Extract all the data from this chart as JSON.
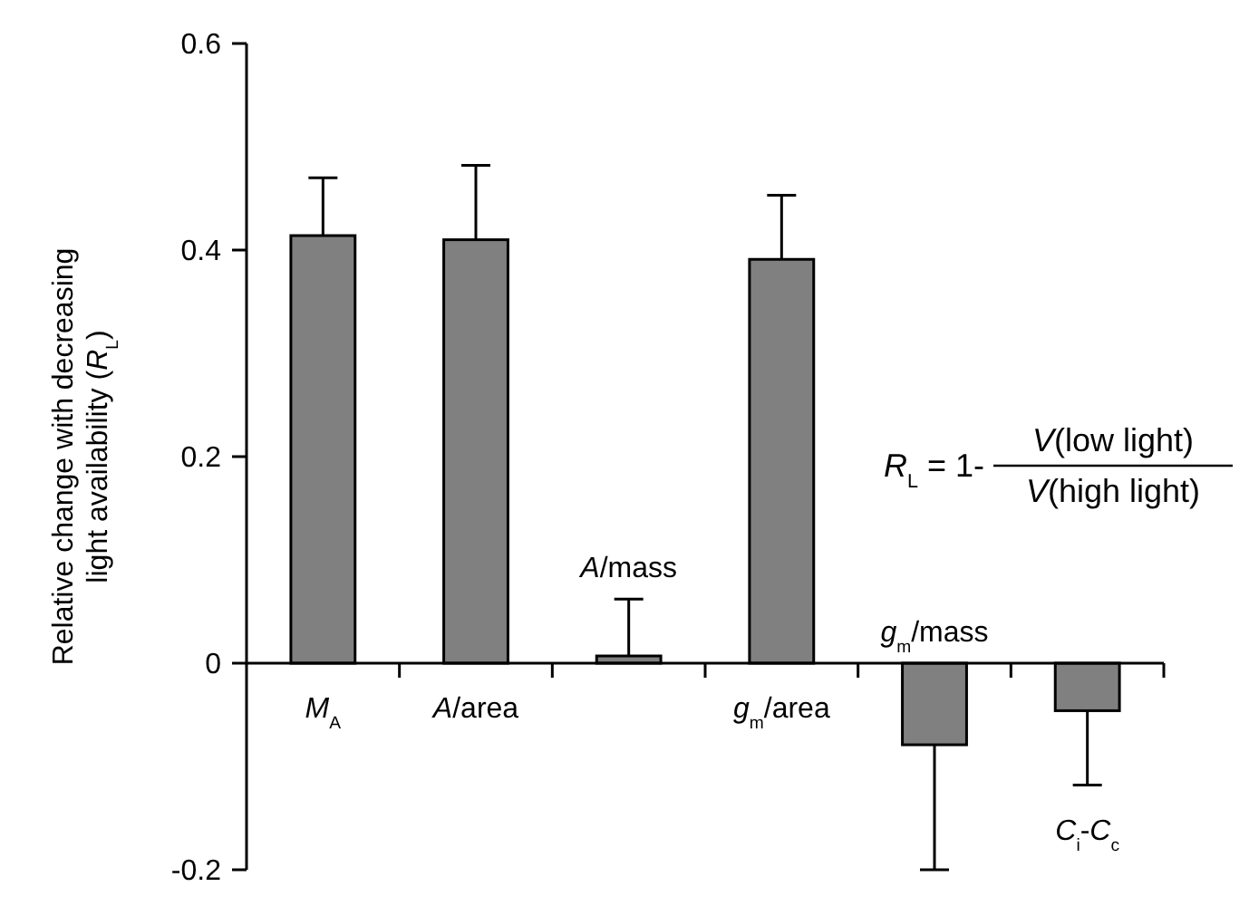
{
  "chart_data": {
    "type": "bar",
    "ylabel": "Relative change with decreasing\nlight availability (R$_{L}$)",
    "categories": [
      "M$_{A}$",
      "A/area",
      "A/mass",
      "g$_{m}$/area",
      "g$_{m}$/mass",
      "C$_{i}$-C$_{c}$"
    ],
    "values": [
      0.414,
      0.41,
      0.007,
      0.391,
      -0.079,
      -0.046
    ],
    "errors": [
      [
        0.414,
        0.47
      ],
      [
        0.41,
        0.482
      ],
      [
        0.007,
        0.062
      ],
      [
        0.391,
        0.453
      ],
      [
        -0.2,
        -0.079
      ],
      [
        -0.118,
        -0.046
      ]
    ],
    "color": "#808080",
    "ylim": [
      -0.2,
      0.6
    ],
    "yticks": [
      -0.2,
      0,
      0.2,
      0.4,
      0.6
    ],
    "annotations": [
      "R$_{L}$ = 1-",
      "V(low light)",
      "V(high light)"
    ]
  }
}
